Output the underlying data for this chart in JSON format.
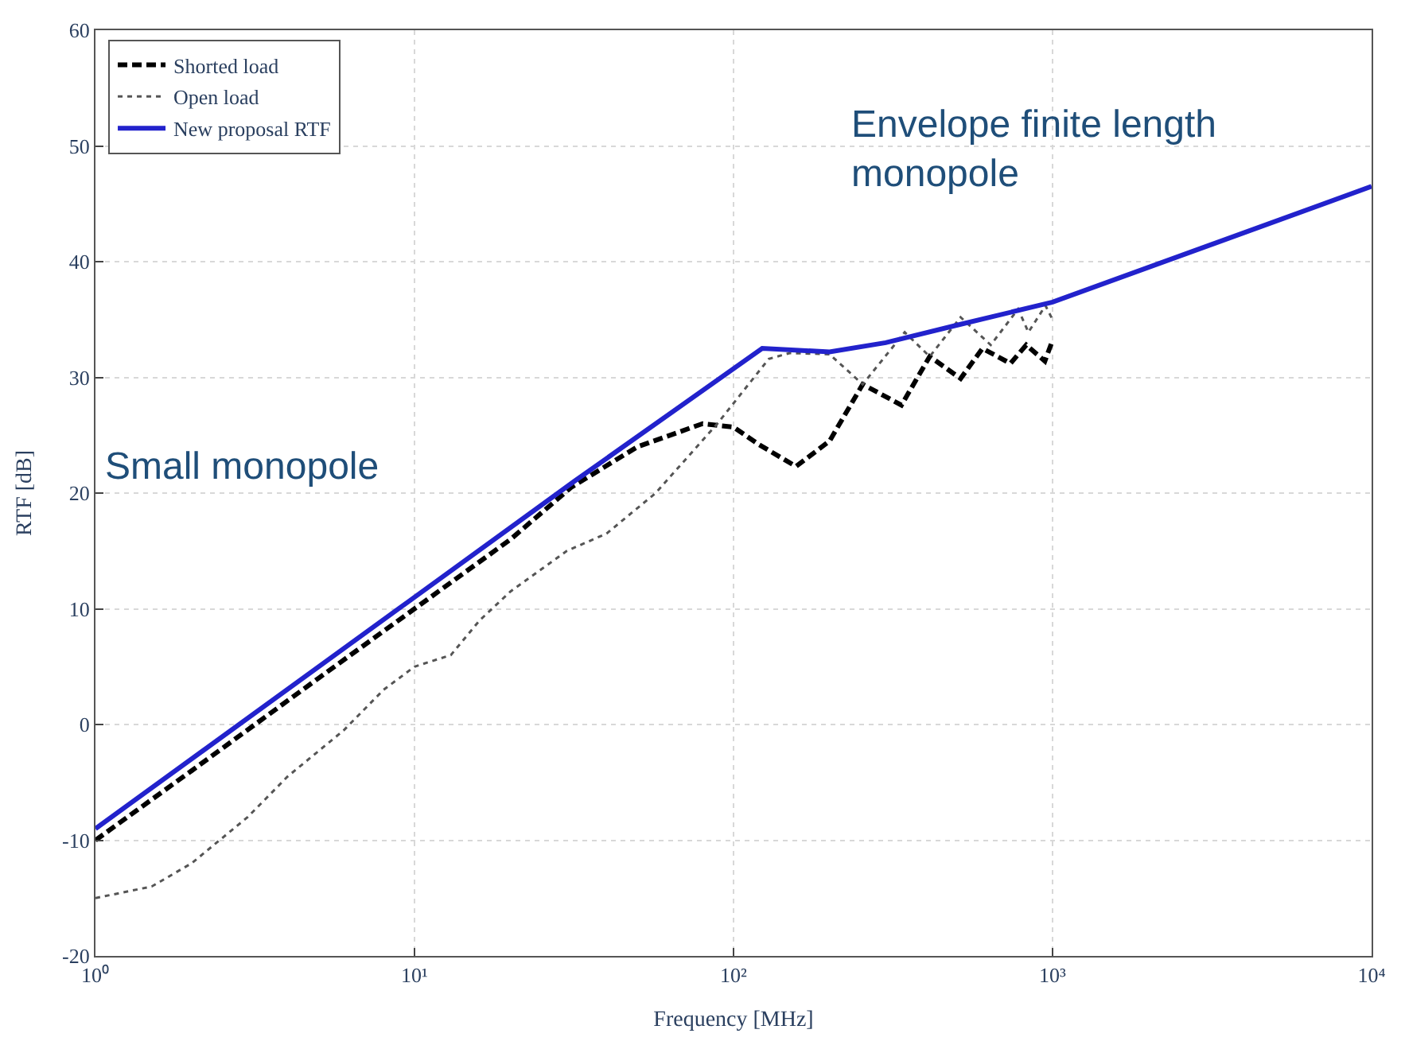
{
  "chart_data": {
    "type": "line",
    "xlabel": "Frequency [MHz]",
    "ylabel": "RTF [dB]",
    "log": "x",
    "xlim": [
      1,
      10000
    ],
    "ylim": [
      -20,
      60
    ],
    "xticks": [
      {
        "value": 1,
        "label": "10⁰"
      },
      {
        "value": 10,
        "label": "10¹"
      },
      {
        "value": 100,
        "label": "10²"
      },
      {
        "value": 1000,
        "label": "10³"
      },
      {
        "value": 10000,
        "label": "10⁴"
      }
    ],
    "yticks": [
      -20,
      -10,
      0,
      10,
      20,
      30,
      40,
      50,
      60
    ],
    "grid": true,
    "legend": "top left",
    "marker": "none",
    "series": [
      {
        "name": "Shorted load",
        "color": "#000000",
        "line_style": "dashed",
        "x": [
          1,
          2,
          5,
          10,
          20,
          31,
          50,
          80,
          100,
          120,
          157,
          200,
          254,
          336,
          412,
          515,
          603,
          738,
          827,
          946,
          1000
        ],
        "values": [
          -10,
          -4,
          4,
          10,
          16,
          20.5,
          24,
          26,
          25.7,
          24.2,
          22.3,
          24.5,
          29.4,
          27.6,
          31.8,
          29.9,
          32.5,
          31.2,
          32.8,
          31.4,
          33.2
        ]
      },
      {
        "name": "Open load",
        "color": "#555555",
        "line_style": "dotted",
        "x": [
          1,
          1.5,
          2,
          3,
          4,
          6,
          8,
          10,
          13,
          16,
          20,
          30,
          40,
          57,
          89,
          129,
          150,
          200,
          254,
          344,
          412,
          515,
          640,
          780,
          840,
          950,
          1000
        ],
        "values": [
          -15,
          -14,
          -12,
          -8,
          -4.5,
          -0.5,
          3,
          5,
          6,
          9,
          11.5,
          15,
          16.5,
          20,
          26,
          31.6,
          32.1,
          32,
          29.4,
          33.9,
          31.8,
          35.2,
          32.8,
          35.9,
          33.9,
          36.2,
          35
        ]
      },
      {
        "name": "New proposal RTF",
        "color": "#2222cc",
        "line_style": "solid",
        "x": [
          1,
          31.6,
          123,
          200,
          300,
          500,
          1000,
          10000
        ],
        "values": [
          -9,
          21,
          32.5,
          32.2,
          33,
          34.5,
          36.5,
          46.5
        ]
      }
    ],
    "annotations": [
      "Small monopole",
      "Envelope finite length monopole"
    ]
  }
}
